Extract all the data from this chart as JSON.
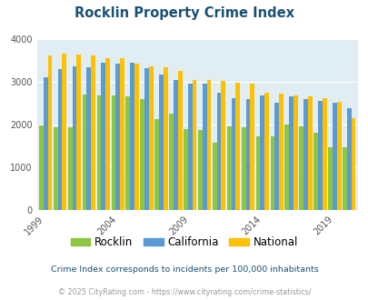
{
  "title": "Rocklin Property Crime Index",
  "title_color": "#1a5276",
  "years": [
    1999,
    2000,
    2001,
    2002,
    2003,
    2004,
    2005,
    2006,
    2007,
    2008,
    2009,
    2010,
    2011,
    2012,
    2013,
    2014,
    2015,
    2016,
    2017,
    2018,
    2019,
    2020
  ],
  "rocklin": [
    1980,
    1930,
    1930,
    2700,
    2680,
    2670,
    2650,
    2600,
    2120,
    2250,
    1890,
    1870,
    1580,
    1950,
    1940,
    1720,
    1730,
    1990,
    1960,
    1800,
    1460,
    1460
  ],
  "california": [
    3110,
    3300,
    3350,
    3340,
    3450,
    3430,
    3440,
    3320,
    3170,
    3040,
    2960,
    2950,
    2750,
    2620,
    2600,
    2680,
    2500,
    2660,
    2590,
    2560,
    2500,
    2380
  ],
  "national": [
    3620,
    3660,
    3630,
    3620,
    3560,
    3550,
    3420,
    3350,
    3340,
    3260,
    3040,
    3050,
    3020,
    2980,
    2960,
    2740,
    2720,
    2690,
    2650,
    2620,
    2530,
    2150
  ],
  "colors": {
    "rocklin": "#8DC63F",
    "california": "#5B9BD5",
    "national": "#FFC000"
  },
  "bg_color": "#E0EEF4",
  "ylim": [
    0,
    4000
  ],
  "ylabel_ticks": [
    0,
    1000,
    2000,
    3000,
    4000
  ],
  "xtick_labels": [
    "1999",
    "2004",
    "2009",
    "2014",
    "2019"
  ],
  "xtick_positions": [
    0,
    5,
    10,
    15,
    20
  ],
  "legend_labels": [
    "Rocklin",
    "California",
    "National"
  ],
  "footnote1": "Crime Index corresponds to incidents per 100,000 inhabitants",
  "footnote2": "© 2025 CityRating.com - https://www.cityrating.com/crime-statistics/",
  "footnote1_color": "#1a5276",
  "footnote2_color": "#999999"
}
